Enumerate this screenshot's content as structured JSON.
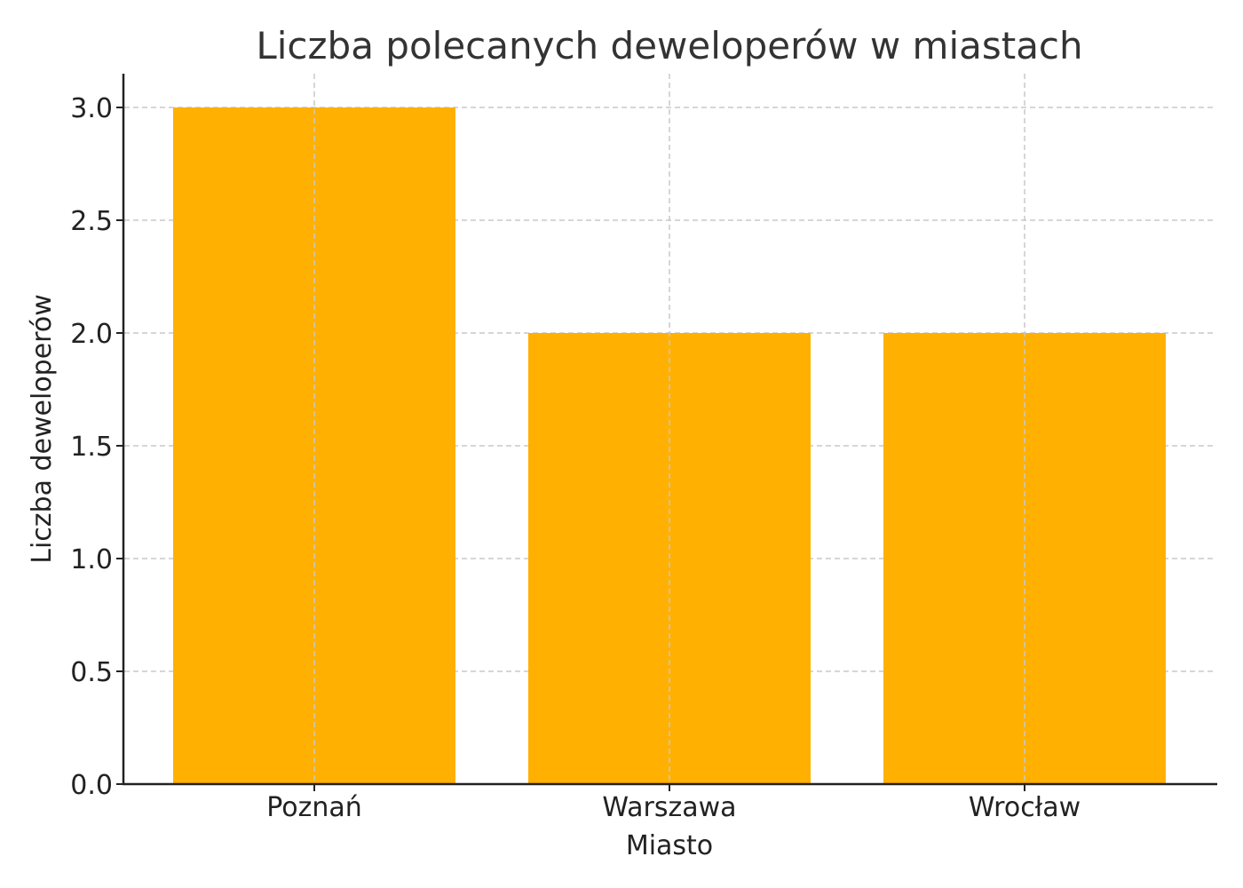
{
  "chart_data": {
    "type": "bar",
    "title": "Liczba polecanych deweloperów w miastach",
    "xlabel": "Miasto",
    "ylabel": "Liczba deweloperów",
    "categories": [
      "Poznań",
      "Warszawa",
      "Wrocław"
    ],
    "values": [
      3,
      2,
      2
    ],
    "ylim": [
      0,
      3.15
    ],
    "yticks": [
      "0.0",
      "0.5",
      "1.0",
      "1.5",
      "2.0",
      "2.5",
      "3.0"
    ],
    "grid": true,
    "legend": null,
    "bar_color": "#FFB000"
  }
}
